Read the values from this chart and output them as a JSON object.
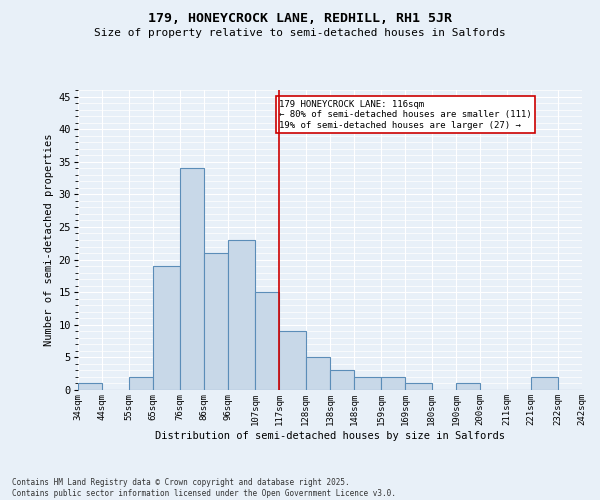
{
  "title1": "179, HONEYCROCK LANE, REDHILL, RH1 5JR",
  "title2": "Size of property relative to semi-detached houses in Salfords",
  "xlabel": "Distribution of semi-detached houses by size in Salfords",
  "ylabel": "Number of semi-detached properties",
  "bins": [
    34,
    44,
    55,
    65,
    76,
    86,
    96,
    107,
    117,
    128,
    138,
    148,
    159,
    169,
    180,
    190,
    200,
    211,
    221,
    232,
    242
  ],
  "bin_labels": [
    "34sqm",
    "44sqm",
    "55sqm",
    "65sqm",
    "76sqm",
    "86sqm",
    "96sqm",
    "107sqm",
    "117sqm",
    "128sqm",
    "138sqm",
    "148sqm",
    "159sqm",
    "169sqm",
    "180sqm",
    "190sqm",
    "200sqm",
    "211sqm",
    "221sqm",
    "232sqm",
    "242sqm"
  ],
  "counts": [
    1,
    0,
    2,
    19,
    34,
    21,
    23,
    15,
    9,
    5,
    3,
    2,
    2,
    1,
    0,
    1,
    0,
    0,
    2,
    0,
    0
  ],
  "bar_color": "#c8d8e8",
  "bar_edge_color": "#5b8db8",
  "vline_x": 117,
  "annotation_text": "179 HONEYCROCK LANE: 116sqm\n← 80% of semi-detached houses are smaller (111)\n19% of semi-detached houses are larger (27) →",
  "ylim": [
    0,
    46
  ],
  "yticks": [
    0,
    5,
    10,
    15,
    20,
    25,
    30,
    35,
    40,
    45
  ],
  "footer1": "Contains HM Land Registry data © Crown copyright and database right 2025.",
  "footer2": "Contains public sector information licensed under the Open Government Licence v3.0.",
  "bg_color": "#e8f0f8",
  "grid_color": "#ffffff"
}
